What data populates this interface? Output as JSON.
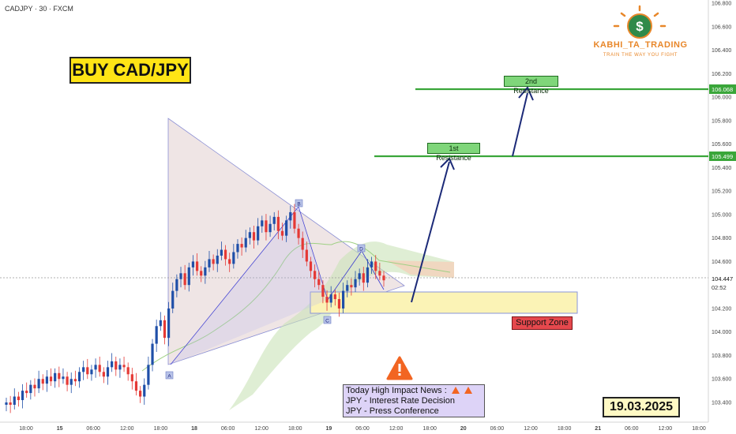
{
  "header": {
    "symbol": "CADJPY · 30 · FXCM"
  },
  "badge": {
    "title": "BUY CAD/JPY"
  },
  "date_badge": "19.03.2025",
  "brand": {
    "title": "KABHI_TA_TRADING",
    "tagline": "TRAIN THE WAY YOU FIGHT",
    "logo_icon": "dollar-coin-icon"
  },
  "labels": {
    "first_resistance": "1st Resistance",
    "second_resistance": "2nd Resistance",
    "support_zone": "Support Zone"
  },
  "news": {
    "title": "Today High Impact News :",
    "items": [
      "JPY - Interest Rate Decision",
      "JPY - Press Conference"
    ],
    "icon": "warning-icon"
  },
  "price_axis": {
    "ticks": [
      "106.800",
      "106.600",
      "106.400",
      "106.200",
      "106.000",
      "105.800",
      "105.600",
      "105.400",
      "105.200",
      "105.000",
      "104.800",
      "104.600",
      "104.400",
      "104.200",
      "104.000",
      "103.800",
      "103.600",
      "103.400"
    ],
    "current_price": "104.447",
    "countdown": "02:52",
    "level_tags": [
      "106.068",
      "105.499"
    ]
  },
  "time_axis": {
    "ticks": [
      "18:00",
      "15",
      "06:00",
      "12:00",
      "18:00",
      "18",
      "06:00",
      "12:00",
      "18:00",
      "19",
      "06:00",
      "12:00",
      "18:00",
      "20",
      "06:00",
      "12:00",
      "18:00",
      "21",
      "06:00",
      "12:00",
      "18:00"
    ]
  },
  "pattern_points": [
    "A",
    "B",
    "C",
    "D"
  ],
  "colors": {
    "resistance": "#3aa63a",
    "support_fill": "#fbf3b6",
    "support_border": "#8a94d8",
    "arrow": "#1c2a78",
    "candle_up": "#1f4fa8",
    "candle_down": "#e53935",
    "warning": "#f26522"
  },
  "chart_data": {
    "type": "candlestick",
    "symbol": "CADJPY",
    "timeframe": "30",
    "ylim": [
      103.3,
      106.8
    ],
    "closes": [
      103.4,
      103.38,
      103.45,
      103.42,
      103.5,
      103.48,
      103.55,
      103.52,
      103.6,
      103.56,
      103.62,
      103.58,
      103.65,
      103.6,
      103.62,
      103.55,
      103.6,
      103.58,
      103.66,
      103.7,
      103.64,
      103.68,
      103.72,
      103.66,
      103.62,
      103.7,
      103.75,
      103.68,
      103.72,
      103.7,
      103.64,
      103.58,
      103.5,
      103.45,
      103.55,
      103.72,
      103.9,
      104.05,
      104.1,
      103.95,
      104.2,
      104.35,
      104.45,
      104.5,
      104.4,
      104.55,
      104.6,
      104.52,
      104.48,
      104.55,
      104.62,
      104.58,
      104.65,
      104.7,
      104.62,
      104.58,
      104.68,
      104.75,
      104.72,
      104.8,
      104.85,
      104.78,
      104.9,
      104.95,
      104.85,
      104.92,
      104.98,
      104.86,
      104.82,
      104.95,
      105.02,
      104.88,
      104.8,
      104.7,
      104.6,
      104.52,
      104.45,
      104.4,
      104.3,
      104.25,
      104.32,
      104.28,
      104.2,
      104.35,
      104.4,
      104.38,
      104.45,
      104.5,
      104.42,
      104.55,
      104.6,
      104.52,
      104.48,
      104.44
    ],
    "levels": [
      {
        "name": "2nd Resistance",
        "price": 106.068
      },
      {
        "name": "1st Resistance",
        "price": 105.499
      }
    ],
    "zones": [
      {
        "name": "Support Zone",
        "from": 104.15,
        "to": 104.35
      }
    ]
  }
}
